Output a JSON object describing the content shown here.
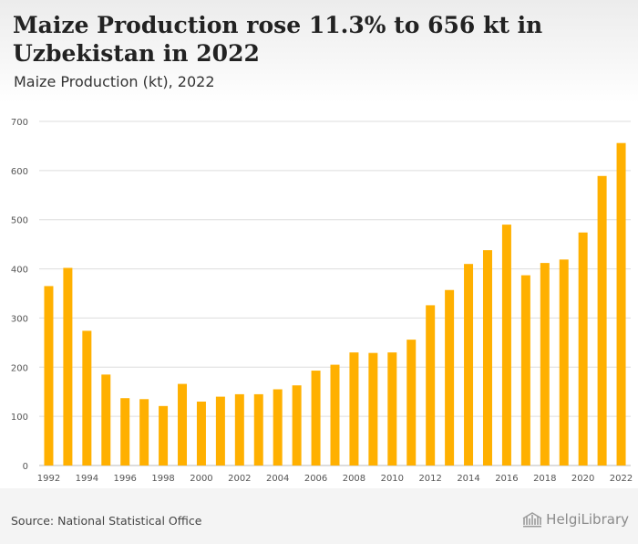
{
  "header": {
    "title": "Maize Production rose 11.3% to 656 kt in Uzbekistan in 2022",
    "subtitle": "Maize Production (kt), 2022"
  },
  "footer": {
    "source": "Source: National Statistical Office",
    "logo_text": "HelgiLibrary"
  },
  "colors": {
    "bar": "#FFB000",
    "grid": "#dddddd",
    "axis_text": "#555555"
  },
  "chart_data": {
    "type": "bar",
    "categories": [
      "1992",
      "1993",
      "1994",
      "1995",
      "1996",
      "1997",
      "1998",
      "1999",
      "2000",
      "2001",
      "2002",
      "2003",
      "2004",
      "2005",
      "2006",
      "2007",
      "2008",
      "2009",
      "2010",
      "2011",
      "2012",
      "2013",
      "2014",
      "2015",
      "2016",
      "2017",
      "2018",
      "2019",
      "2020",
      "2021",
      "2022"
    ],
    "x_tick_labels": [
      "1992",
      "1994",
      "1996",
      "1998",
      "2000",
      "2002",
      "2004",
      "2006",
      "2008",
      "2010",
      "2012",
      "2014",
      "2016",
      "2018",
      "2020",
      "2022"
    ],
    "values": [
      365,
      402,
      274,
      185,
      137,
      135,
      121,
      166,
      130,
      140,
      145,
      145,
      155,
      163,
      193,
      205,
      230,
      229,
      230,
      256,
      326,
      357,
      410,
      438,
      490,
      387,
      412,
      419,
      474,
      589,
      656
    ],
    "title": "",
    "xlabel": "",
    "ylabel": "",
    "ylim": [
      0,
      700
    ],
    "yticks": [
      0,
      100,
      200,
      300,
      400,
      500,
      600,
      700
    ],
    "grid": true
  }
}
